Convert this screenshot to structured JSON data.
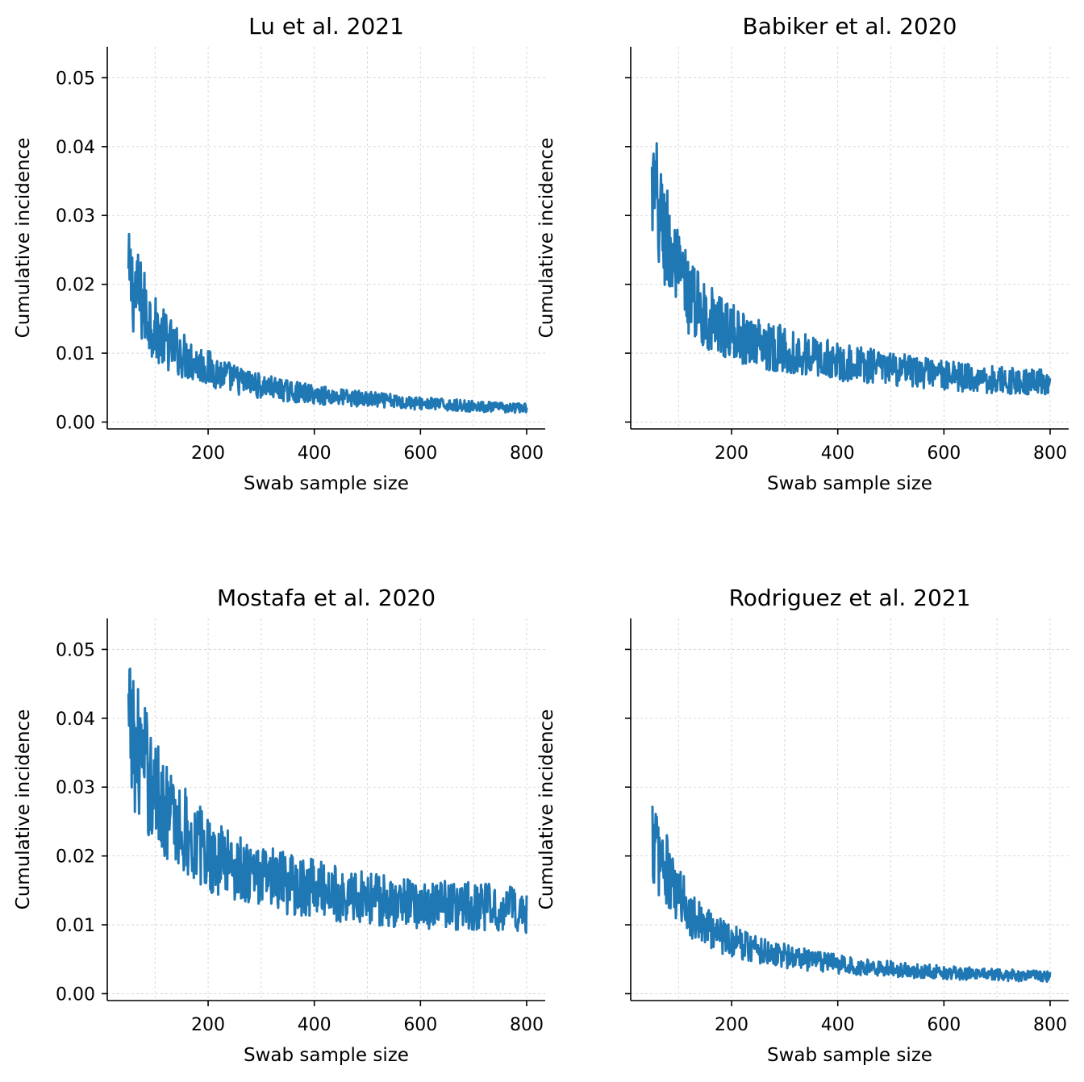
{
  "colors": {
    "line": "#1f77b4",
    "grid": "#cfcfcf",
    "axis": "#000000"
  },
  "chart_data": [
    {
      "type": "line",
      "title": "Lu et al. 2021",
      "xlabel": "Swab sample size",
      "ylabel": "Cumulative incidence",
      "xlim": [
        10,
        835
      ],
      "ylim": [
        -0.001,
        0.0545
      ],
      "xticks": [
        "200",
        "400",
        "600",
        "800"
      ],
      "xtick_values": [
        200,
        400,
        600,
        800
      ],
      "yticks": [
        "0.00",
        "0.01",
        "0.02",
        "0.03",
        "0.04",
        "0.05"
      ],
      "ytick_values": [
        0,
        0.01,
        0.02,
        0.03,
        0.04,
        0.05
      ],
      "show_ytick_labels": true,
      "grid": true,
      "x_range": [
        50,
        800
      ],
      "series": [
        {
          "x": [
            50,
            60,
            70,
            80,
            90,
            100,
            125,
            150,
            175,
            200,
            250,
            300,
            350,
            400,
            450,
            500,
            550,
            600,
            650,
            700,
            750,
            800
          ],
          "y": [
            0.0205,
            0.0195,
            0.018,
            0.0165,
            0.015,
            0.0135,
            0.0115,
            0.0098,
            0.0088,
            0.0078,
            0.0062,
            0.0052,
            0.0045,
            0.004,
            0.0036,
            0.0033,
            0.003,
            0.0027,
            0.0025,
            0.0023,
            0.0021,
            0.002
          ]
        }
      ]
    },
    {
      "type": "line",
      "title": "Babiker et al. 2020",
      "xlabel": "Swab sample size",
      "ylabel": "Cumulative incidence",
      "xlim": [
        10,
        835
      ],
      "ylim": [
        -0.001,
        0.0545
      ],
      "xticks": [
        "200",
        "400",
        "600",
        "800"
      ],
      "xtick_values": [
        200,
        400,
        600,
        800
      ],
      "yticks": [],
      "ytick_values": [
        0,
        0.01,
        0.02,
        0.03,
        0.04,
        0.05
      ],
      "show_ytick_labels": false,
      "grid": true,
      "x_range": [
        50,
        800
      ],
      "series": [
        {
          "x": [
            50,
            60,
            70,
            80,
            90,
            100,
            125,
            150,
            175,
            200,
            250,
            300,
            350,
            400,
            450,
            500,
            550,
            600,
            650,
            700,
            750,
            800
          ],
          "y": [
            0.033,
            0.031,
            0.028,
            0.026,
            0.0235,
            0.021,
            0.018,
            0.0155,
            0.0142,
            0.013,
            0.0115,
            0.0105,
            0.0095,
            0.0088,
            0.0082,
            0.0077,
            0.0072,
            0.0068,
            0.0064,
            0.0061,
            0.0059,
            0.0057
          ]
        }
      ]
    },
    {
      "type": "line",
      "title": "Mostafa et al. 2020",
      "xlabel": "Swab sample size",
      "ylabel": "Cumulative incidence",
      "xlim": [
        10,
        835
      ],
      "ylim": [
        -0.001,
        0.0545
      ],
      "xticks": [
        "200",
        "400",
        "600",
        "800"
      ],
      "xtick_values": [
        200,
        400,
        600,
        800
      ],
      "yticks": [
        "0.00",
        "0.01",
        "0.02",
        "0.03",
        "0.04",
        "0.05"
      ],
      "ytick_values": [
        0,
        0.01,
        0.02,
        0.03,
        0.04,
        0.05
      ],
      "show_ytick_labels": true,
      "grid": true,
      "x_range": [
        50,
        800
      ],
      "series": [
        {
          "x": [
            50,
            60,
            70,
            80,
            90,
            100,
            125,
            150,
            175,
            200,
            250,
            300,
            350,
            400,
            450,
            500,
            550,
            600,
            650,
            700,
            750,
            800
          ],
          "y": [
            0.038,
            0.037,
            0.035,
            0.033,
            0.031,
            0.029,
            0.0265,
            0.024,
            0.0222,
            0.0205,
            0.0185,
            0.017,
            0.016,
            0.0152,
            0.0145,
            0.0139,
            0.0134,
            0.0131,
            0.0128,
            0.0126,
            0.0124,
            0.0123
          ]
        }
      ]
    },
    {
      "type": "line",
      "title": "Rodriguez et al. 2021",
      "xlabel": "Swab sample size",
      "ylabel": "Cumulative incidence",
      "xlim": [
        10,
        835
      ],
      "ylim": [
        -0.001,
        0.0545
      ],
      "xticks": [
        "200",
        "400",
        "600",
        "800"
      ],
      "xtick_values": [
        200,
        400,
        600,
        800
      ],
      "yticks": [],
      "ytick_values": [
        0,
        0.01,
        0.02,
        0.03,
        0.04,
        0.05
      ],
      "show_ytick_labels": false,
      "grid": true,
      "x_range": [
        50,
        800
      ],
      "series": [
        {
          "x": [
            50,
            60,
            70,
            80,
            90,
            100,
            125,
            150,
            175,
            200,
            250,
            300,
            350,
            400,
            450,
            500,
            550,
            600,
            650,
            700,
            750,
            800
          ],
          "y": [
            0.0225,
            0.021,
            0.019,
            0.0172,
            0.0155,
            0.014,
            0.0118,
            0.0098,
            0.0088,
            0.0078,
            0.0065,
            0.0055,
            0.0048,
            0.0043,
            0.0039,
            0.0036,
            0.0033,
            0.0031,
            0.0029,
            0.0027,
            0.0026,
            0.0025
          ]
        }
      ]
    }
  ]
}
